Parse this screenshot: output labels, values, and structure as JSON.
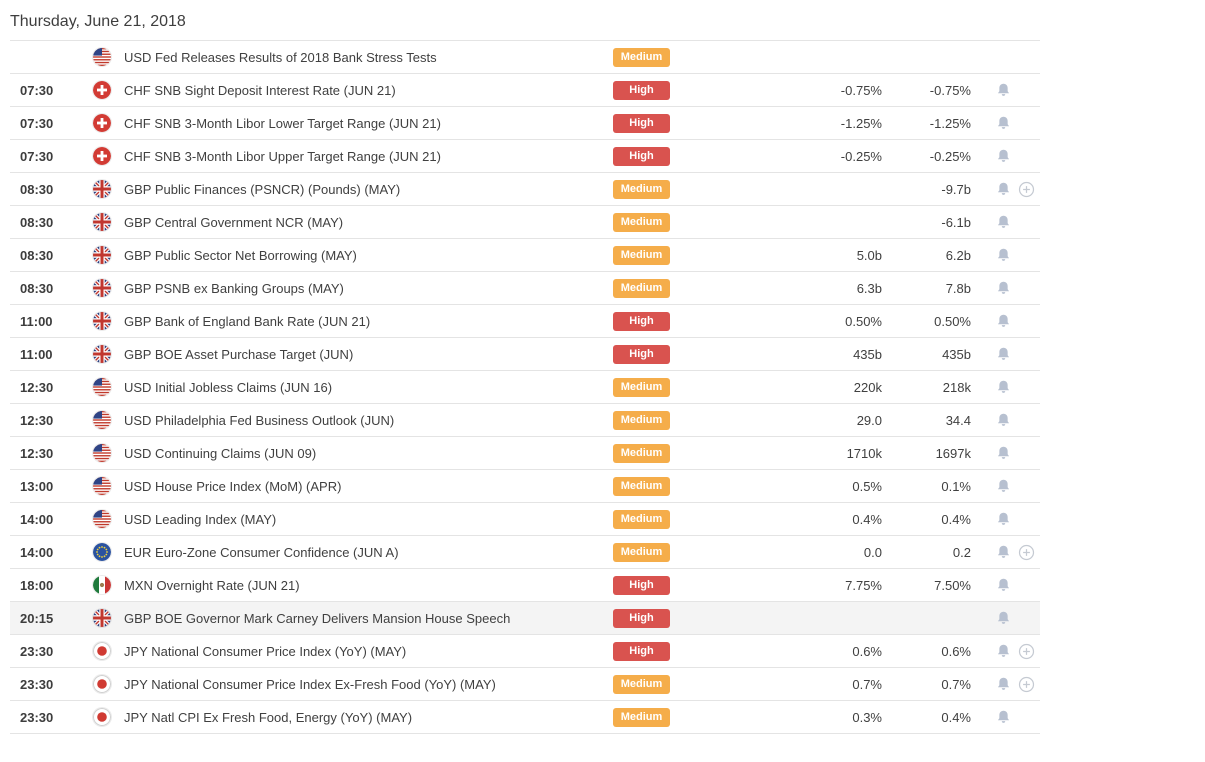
{
  "header": {
    "date_title": "Thursday, June 21, 2018"
  },
  "colors": {
    "importance_high": "#d9534f",
    "importance_medium": "#f5ad4a",
    "bell_icon": "#b7c0d0",
    "plus_icon": "#c5cad2",
    "row_highlight": "#f4f4f4",
    "row_border": "#e4e4e4"
  },
  "icons": {
    "bell": "alert-bell-icon",
    "plus": "add-to-watchlist-icon"
  },
  "table": {
    "rows": [
      {
        "time": "",
        "currency": "USD",
        "flag": "us",
        "event": "USD Fed Releases Results of 2018 Bank Stress Tests",
        "importance": "Medium",
        "value1": "",
        "value2": "",
        "bell": false,
        "plus": false,
        "highlighted": false
      },
      {
        "time": "07:30",
        "currency": "CHF",
        "flag": "ch",
        "event": "CHF SNB Sight Deposit Interest Rate (JUN 21)",
        "importance": "High",
        "value1": "-0.75%",
        "value2": "-0.75%",
        "bell": true,
        "plus": false,
        "highlighted": false
      },
      {
        "time": "07:30",
        "currency": "CHF",
        "flag": "ch",
        "event": "CHF SNB 3-Month Libor Lower Target Range (JUN 21)",
        "importance": "High",
        "value1": "-1.25%",
        "value2": "-1.25%",
        "bell": true,
        "plus": false,
        "highlighted": false
      },
      {
        "time": "07:30",
        "currency": "CHF",
        "flag": "ch",
        "event": "CHF SNB 3-Month Libor Upper Target Range (JUN 21)",
        "importance": "High",
        "value1": "-0.25%",
        "value2": "-0.25%",
        "bell": true,
        "plus": false,
        "highlighted": false
      },
      {
        "time": "08:30",
        "currency": "GBP",
        "flag": "gb",
        "event": "GBP Public Finances (PSNCR) (Pounds) (MAY)",
        "importance": "Medium",
        "value1": "",
        "value2": "-9.7b",
        "bell": true,
        "plus": true,
        "highlighted": false
      },
      {
        "time": "08:30",
        "currency": "GBP",
        "flag": "gb",
        "event": "GBP Central Government NCR (MAY)",
        "importance": "Medium",
        "value1": "",
        "value2": "-6.1b",
        "bell": true,
        "plus": false,
        "highlighted": false
      },
      {
        "time": "08:30",
        "currency": "GBP",
        "flag": "gb",
        "event": "GBP Public Sector Net Borrowing (MAY)",
        "importance": "Medium",
        "value1": "5.0b",
        "value2": "6.2b",
        "bell": true,
        "plus": false,
        "highlighted": false
      },
      {
        "time": "08:30",
        "currency": "GBP",
        "flag": "gb",
        "event": "GBP PSNB ex Banking Groups (MAY)",
        "importance": "Medium",
        "value1": "6.3b",
        "value2": "7.8b",
        "bell": true,
        "plus": false,
        "highlighted": false
      },
      {
        "time": "11:00",
        "currency": "GBP",
        "flag": "gb",
        "event": "GBP Bank of England Bank Rate (JUN 21)",
        "importance": "High",
        "value1": "0.50%",
        "value2": "0.50%",
        "bell": true,
        "plus": false,
        "highlighted": false
      },
      {
        "time": "11:00",
        "currency": "GBP",
        "flag": "gb",
        "event": "GBP BOE Asset Purchase Target (JUN)",
        "importance": "High",
        "value1": "435b",
        "value2": "435b",
        "bell": true,
        "plus": false,
        "highlighted": false
      },
      {
        "time": "12:30",
        "currency": "USD",
        "flag": "us",
        "event": "USD Initial Jobless Claims (JUN 16)",
        "importance": "Medium",
        "value1": "220k",
        "value2": "218k",
        "bell": true,
        "plus": false,
        "highlighted": false
      },
      {
        "time": "12:30",
        "currency": "USD",
        "flag": "us",
        "event": "USD Philadelphia Fed Business Outlook (JUN)",
        "importance": "Medium",
        "value1": "29.0",
        "value2": "34.4",
        "bell": true,
        "plus": false,
        "highlighted": false
      },
      {
        "time": "12:30",
        "currency": "USD",
        "flag": "us",
        "event": "USD Continuing Claims (JUN 09)",
        "importance": "Medium",
        "value1": "1710k",
        "value2": "1697k",
        "bell": true,
        "plus": false,
        "highlighted": false
      },
      {
        "time": "13:00",
        "currency": "USD",
        "flag": "us",
        "event": "USD House Price Index (MoM) (APR)",
        "importance": "Medium",
        "value1": "0.5%",
        "value2": "0.1%",
        "bell": true,
        "plus": false,
        "highlighted": false
      },
      {
        "time": "14:00",
        "currency": "USD",
        "flag": "us",
        "event": "USD Leading Index (MAY)",
        "importance": "Medium",
        "value1": "0.4%",
        "value2": "0.4%",
        "bell": true,
        "plus": false,
        "highlighted": false
      },
      {
        "time": "14:00",
        "currency": "EUR",
        "flag": "eu",
        "event": "EUR Euro-Zone Consumer Confidence (JUN A)",
        "importance": "Medium",
        "value1": "0.0",
        "value2": "0.2",
        "bell": true,
        "plus": true,
        "highlighted": false
      },
      {
        "time": "18:00",
        "currency": "MXN",
        "flag": "mx",
        "event": "MXN Overnight Rate (JUN 21)",
        "importance": "High",
        "value1": "7.75%",
        "value2": "7.50%",
        "bell": true,
        "plus": false,
        "highlighted": false
      },
      {
        "time": "20:15",
        "currency": "GBP",
        "flag": "gb",
        "event": "GBP BOE Governor Mark Carney Delivers Mansion House Speech",
        "importance": "High",
        "value1": "",
        "value2": "",
        "bell": true,
        "plus": false,
        "highlighted": true
      },
      {
        "time": "23:30",
        "currency": "JPY",
        "flag": "jp",
        "event": "JPY National Consumer Price Index (YoY) (MAY)",
        "importance": "High",
        "value1": "0.6%",
        "value2": "0.6%",
        "bell": true,
        "plus": true,
        "highlighted": false
      },
      {
        "time": "23:30",
        "currency": "JPY",
        "flag": "jp",
        "event": "JPY National Consumer Price Index Ex-Fresh Food (YoY) (MAY)",
        "importance": "Medium",
        "value1": "0.7%",
        "value2": "0.7%",
        "bell": true,
        "plus": true,
        "highlighted": false
      },
      {
        "time": "23:30",
        "currency": "JPY",
        "flag": "jp",
        "event": "JPY Natl CPI Ex Fresh Food, Energy (YoY) (MAY)",
        "importance": "Medium",
        "value1": "0.3%",
        "value2": "0.4%",
        "bell": true,
        "plus": false,
        "highlighted": false
      }
    ]
  }
}
